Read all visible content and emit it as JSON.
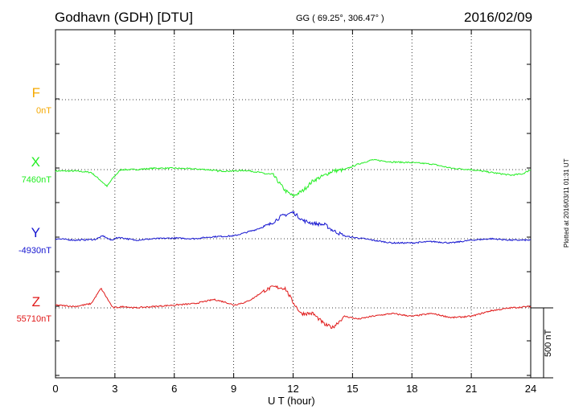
{
  "header": {
    "station": "Godhavn (GDH)  [DTU]",
    "coords": "GG ( 69.25°, 306.47° )",
    "date": "2016/02/09"
  },
  "footer": {
    "plotted": "Plotted at 2016/03/11 01:31 UT"
  },
  "chart_data": {
    "type": "line",
    "xlabel": "U T (hour)",
    "xlim": [
      0,
      24
    ],
    "xticks": [
      0,
      3,
      6,
      9,
      12,
      15,
      18,
      21,
      24
    ],
    "xtick_labels": [
      "0",
      "3",
      "6",
      "9",
      "12",
      "15",
      "18",
      "21",
      "24"
    ],
    "y_unit": "nT",
    "grid": true,
    "scale_bar": {
      "label": "500 nT",
      "value": 500
    },
    "series": [
      {
        "name": "F",
        "baseline_label": "0nT",
        "color": "#f5a800",
        "offset_label_value": 0,
        "points": []
      },
      {
        "name": "X",
        "baseline_label": "7460nT",
        "color": "#22ee22",
        "offset_label_value": 7460,
        "points": [
          [
            0,
            -10
          ],
          [
            1,
            -10
          ],
          [
            1.8,
            -20
          ],
          [
            2.3,
            -80
          ],
          [
            2.6,
            -120
          ],
          [
            2.9,
            -60
          ],
          [
            3.3,
            0
          ],
          [
            4,
            0
          ],
          [
            5,
            10
          ],
          [
            6,
            10
          ],
          [
            7,
            5
          ],
          [
            7.7,
            0
          ],
          [
            8.2,
            -10
          ],
          [
            9,
            -10
          ],
          [
            9.6,
            -5
          ],
          [
            10.3,
            -20
          ],
          [
            11,
            -40
          ],
          [
            11.6,
            -150
          ],
          [
            12,
            -190
          ],
          [
            12.5,
            -150
          ],
          [
            13,
            -80
          ],
          [
            13.6,
            -40
          ],
          [
            14,
            -10
          ],
          [
            14.6,
            0
          ],
          [
            15.3,
            40
          ],
          [
            16,
            70
          ],
          [
            17,
            55
          ],
          [
            18,
            50
          ],
          [
            19,
            40
          ],
          [
            20,
            10
          ],
          [
            21,
            0
          ],
          [
            22,
            -20
          ],
          [
            23,
            -40
          ],
          [
            23.6,
            -30
          ],
          [
            24,
            0
          ]
        ]
      },
      {
        "name": "Y",
        "baseline_label": "-4930nT",
        "color": "#1414d0",
        "offset_label_value": -4930,
        "points": [
          [
            0,
            0
          ],
          [
            1,
            -10
          ],
          [
            2,
            -5
          ],
          [
            2.4,
            20
          ],
          [
            2.8,
            -10
          ],
          [
            3.2,
            10
          ],
          [
            4,
            -10
          ],
          [
            5,
            0
          ],
          [
            6,
            5
          ],
          [
            7,
            0
          ],
          [
            8,
            15
          ],
          [
            9,
            20
          ],
          [
            10,
            60
          ],
          [
            10.8,
            100
          ],
          [
            11.4,
            160
          ],
          [
            12,
            190
          ],
          [
            12.5,
            130
          ],
          [
            13,
            110
          ],
          [
            13.6,
            100
          ],
          [
            14,
            60
          ],
          [
            14.6,
            20
          ],
          [
            15,
            10
          ],
          [
            15.6,
            0
          ],
          [
            16,
            -10
          ],
          [
            17,
            -30
          ],
          [
            18,
            -30
          ],
          [
            19,
            -20
          ],
          [
            20,
            -30
          ],
          [
            21,
            -10
          ],
          [
            22,
            0
          ],
          [
            23,
            -10
          ],
          [
            24,
            -10
          ]
        ]
      },
      {
        "name": "Z",
        "baseline_label": "55710nT",
        "color": "#e01818",
        "offset_label_value": 55710,
        "points": [
          [
            0,
            20
          ],
          [
            1,
            10
          ],
          [
            1.8,
            30
          ],
          [
            2.3,
            140
          ],
          [
            2.6,
            70
          ],
          [
            2.9,
            0
          ],
          [
            3.5,
            10
          ],
          [
            4,
            0
          ],
          [
            5,
            10
          ],
          [
            6,
            20
          ],
          [
            7,
            30
          ],
          [
            8,
            60
          ],
          [
            8.6,
            40
          ],
          [
            9,
            20
          ],
          [
            9.6,
            40
          ],
          [
            10,
            70
          ],
          [
            10.5,
            120
          ],
          [
            11,
            150
          ],
          [
            11.6,
            140
          ],
          [
            12,
            40
          ],
          [
            12.4,
            -40
          ],
          [
            13,
            -40
          ],
          [
            13.6,
            -120
          ],
          [
            14,
            -140
          ],
          [
            14.6,
            -60
          ],
          [
            15.3,
            -80
          ],
          [
            16,
            -60
          ],
          [
            17,
            -40
          ],
          [
            18,
            -60
          ],
          [
            19,
            -40
          ],
          [
            20,
            -70
          ],
          [
            21,
            -60
          ],
          [
            22,
            -20
          ],
          [
            23,
            0
          ],
          [
            24,
            10
          ]
        ]
      }
    ]
  }
}
